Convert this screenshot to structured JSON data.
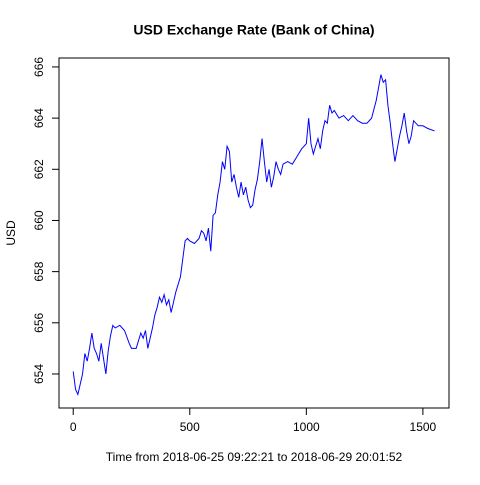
{
  "chart_data": {
    "type": "line",
    "title": "USD Exchange Rate (Bank of China)",
    "x_label": "Time from 2018-06-25 09:22:21 to 2018-06-29 20:01:52",
    "y_label": "USD",
    "xlim": [
      -61,
      1612
    ],
    "xticks": [
      0,
      500,
      1000,
      1500
    ],
    "ylim": [
      652.67,
      666.35
    ],
    "yticks": [
      654,
      656,
      658,
      660,
      662,
      664,
      666
    ],
    "x": [
      0,
      10,
      20,
      30,
      40,
      50,
      60,
      70,
      80,
      90,
      100,
      110,
      120,
      130,
      140,
      150,
      160,
      170,
      180,
      200,
      220,
      240,
      250,
      270,
      290,
      300,
      310,
      320,
      330,
      340,
      350,
      360,
      370,
      380,
      390,
      400,
      410,
      420,
      430,
      440,
      450,
      460,
      470,
      480,
      490,
      500,
      520,
      540,
      550,
      560,
      570,
      580,
      590,
      600,
      610,
      620,
      630,
      640,
      650,
      660,
      670,
      680,
      690,
      700,
      710,
      720,
      730,
      740,
      750,
      760,
      770,
      780,
      790,
      800,
      810,
      820,
      830,
      840,
      850,
      860,
      870,
      880,
      890,
      900,
      920,
      940,
      960,
      980,
      1000,
      1010,
      1020,
      1030,
      1040,
      1050,
      1060,
      1070,
      1080,
      1090,
      1100,
      1110,
      1120,
      1140,
      1160,
      1180,
      1200,
      1220,
      1240,
      1260,
      1280,
      1300,
      1310,
      1320,
      1330,
      1340,
      1350,
      1360,
      1370,
      1380,
      1390,
      1400,
      1410,
      1420,
      1430,
      1440,
      1450,
      1460,
      1480,
      1500,
      1520,
      1550
    ],
    "series": [
      {
        "name": "USD",
        "color": "#0000ff",
        "values": [
          654.1,
          653.4,
          653.2,
          653.6,
          654.0,
          654.8,
          654.5,
          655.0,
          655.6,
          655.0,
          654.8,
          654.5,
          655.2,
          654.6,
          654.0,
          654.9,
          655.5,
          655.9,
          655.8,
          655.9,
          655.7,
          655.2,
          655.0,
          655.0,
          655.6,
          655.4,
          655.7,
          655.0,
          655.4,
          655.8,
          656.3,
          656.6,
          657.0,
          656.8,
          657.1,
          656.7,
          656.9,
          656.4,
          656.8,
          657.2,
          657.5,
          657.8,
          658.5,
          659.2,
          659.3,
          659.2,
          659.1,
          659.3,
          659.6,
          659.5,
          659.2,
          659.7,
          658.8,
          660.2,
          660.3,
          661.0,
          661.5,
          662.3,
          662.0,
          662.9,
          662.7,
          661.5,
          661.8,
          661.3,
          660.9,
          661.5,
          661.0,
          661.3,
          660.8,
          660.5,
          660.6,
          661.2,
          661.6,
          662.3,
          663.2,
          662.3,
          661.5,
          662.0,
          661.3,
          661.7,
          662.3,
          662.0,
          661.8,
          662.2,
          662.3,
          662.2,
          662.5,
          662.8,
          663.0,
          664.0,
          663.0,
          662.6,
          662.9,
          663.2,
          662.8,
          663.5,
          663.9,
          663.8,
          664.5,
          664.2,
          664.3,
          664.0,
          664.1,
          663.9,
          664.1,
          663.9,
          663.8,
          663.8,
          664.0,
          664.7,
          665.2,
          665.7,
          665.4,
          665.5,
          664.5,
          663.8,
          663.0,
          662.3,
          662.8,
          663.3,
          663.7,
          664.2,
          663.5,
          663.0,
          663.3,
          663.9,
          663.7,
          663.7,
          663.6,
          663.5
        ]
      }
    ]
  }
}
